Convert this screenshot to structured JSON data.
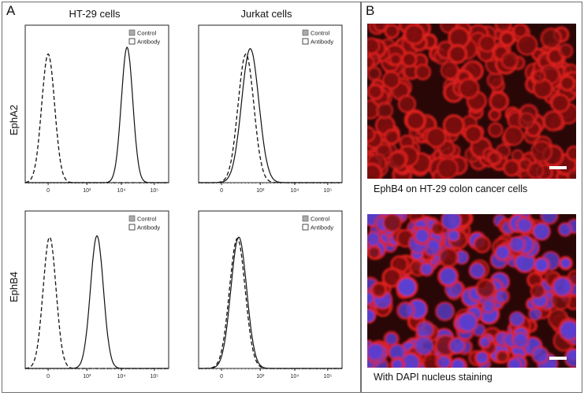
{
  "panelA": {
    "letter": "A",
    "col_titles": [
      "HT-29 cells",
      "Jurkat cells"
    ],
    "row_labels": [
      "EphA2",
      "EphB4"
    ],
    "legend": {
      "control": "Control",
      "antibody": "Antibody"
    }
  },
  "panelB": {
    "letter": "B",
    "caption_top": "EphB4 on HT-29 colon cancer cells",
    "caption_bottom": "With DAPI nucleus staining"
  },
  "chart_data": [
    {
      "type": "line",
      "title": "HT-29 cells / EphA2",
      "xticks": [
        "0",
        "10³",
        "10⁴",
        "10⁵"
      ],
      "xscale": "biexponential",
      "series": [
        {
          "name": "Control",
          "style": "dashed",
          "peak_x": 0.16,
          "width": 0.045,
          "peak_height": 0.95
        },
        {
          "name": "Antibody",
          "style": "solid",
          "peak_x": 0.71,
          "width": 0.04,
          "peak_height": 1.0
        }
      ]
    },
    {
      "type": "line",
      "title": "Jurkat cells / EphA2",
      "xticks": [
        "0",
        "10³",
        "10⁴",
        "10⁵"
      ],
      "xscale": "biexponential",
      "series": [
        {
          "name": "Control",
          "style": "dashed",
          "peak_x": 0.33,
          "width": 0.055,
          "peak_height": 0.95
        },
        {
          "name": "Antibody",
          "style": "solid",
          "peak_x": 0.36,
          "width": 0.06,
          "peak_height": 0.99
        }
      ]
    },
    {
      "type": "line",
      "title": "HT-29 cells / EphB4",
      "xticks": [
        "0",
        "10³",
        "10⁴",
        "10⁵"
      ],
      "xscale": "biexponential",
      "series": [
        {
          "name": "Control",
          "style": "dashed",
          "peak_x": 0.17,
          "width": 0.045,
          "peak_height": 0.97
        },
        {
          "name": "Antibody",
          "style": "solid",
          "peak_x": 0.5,
          "width": 0.045,
          "peak_height": 0.98
        }
      ]
    },
    {
      "type": "line",
      "title": "Jurkat cells / EphB4",
      "xticks": [
        "0",
        "10³",
        "10⁴",
        "10⁵"
      ],
      "xscale": "biexponential",
      "series": [
        {
          "name": "Control",
          "style": "dashed",
          "peak_x": 0.27,
          "width": 0.055,
          "peak_height": 0.96
        },
        {
          "name": "Antibody",
          "style": "solid",
          "peak_x": 0.28,
          "width": 0.055,
          "peak_height": 0.97
        }
      ]
    }
  ],
  "colors": {
    "membrane": "#e0201e",
    "dapi": "#5a3fd0",
    "background": "#2a0707"
  }
}
